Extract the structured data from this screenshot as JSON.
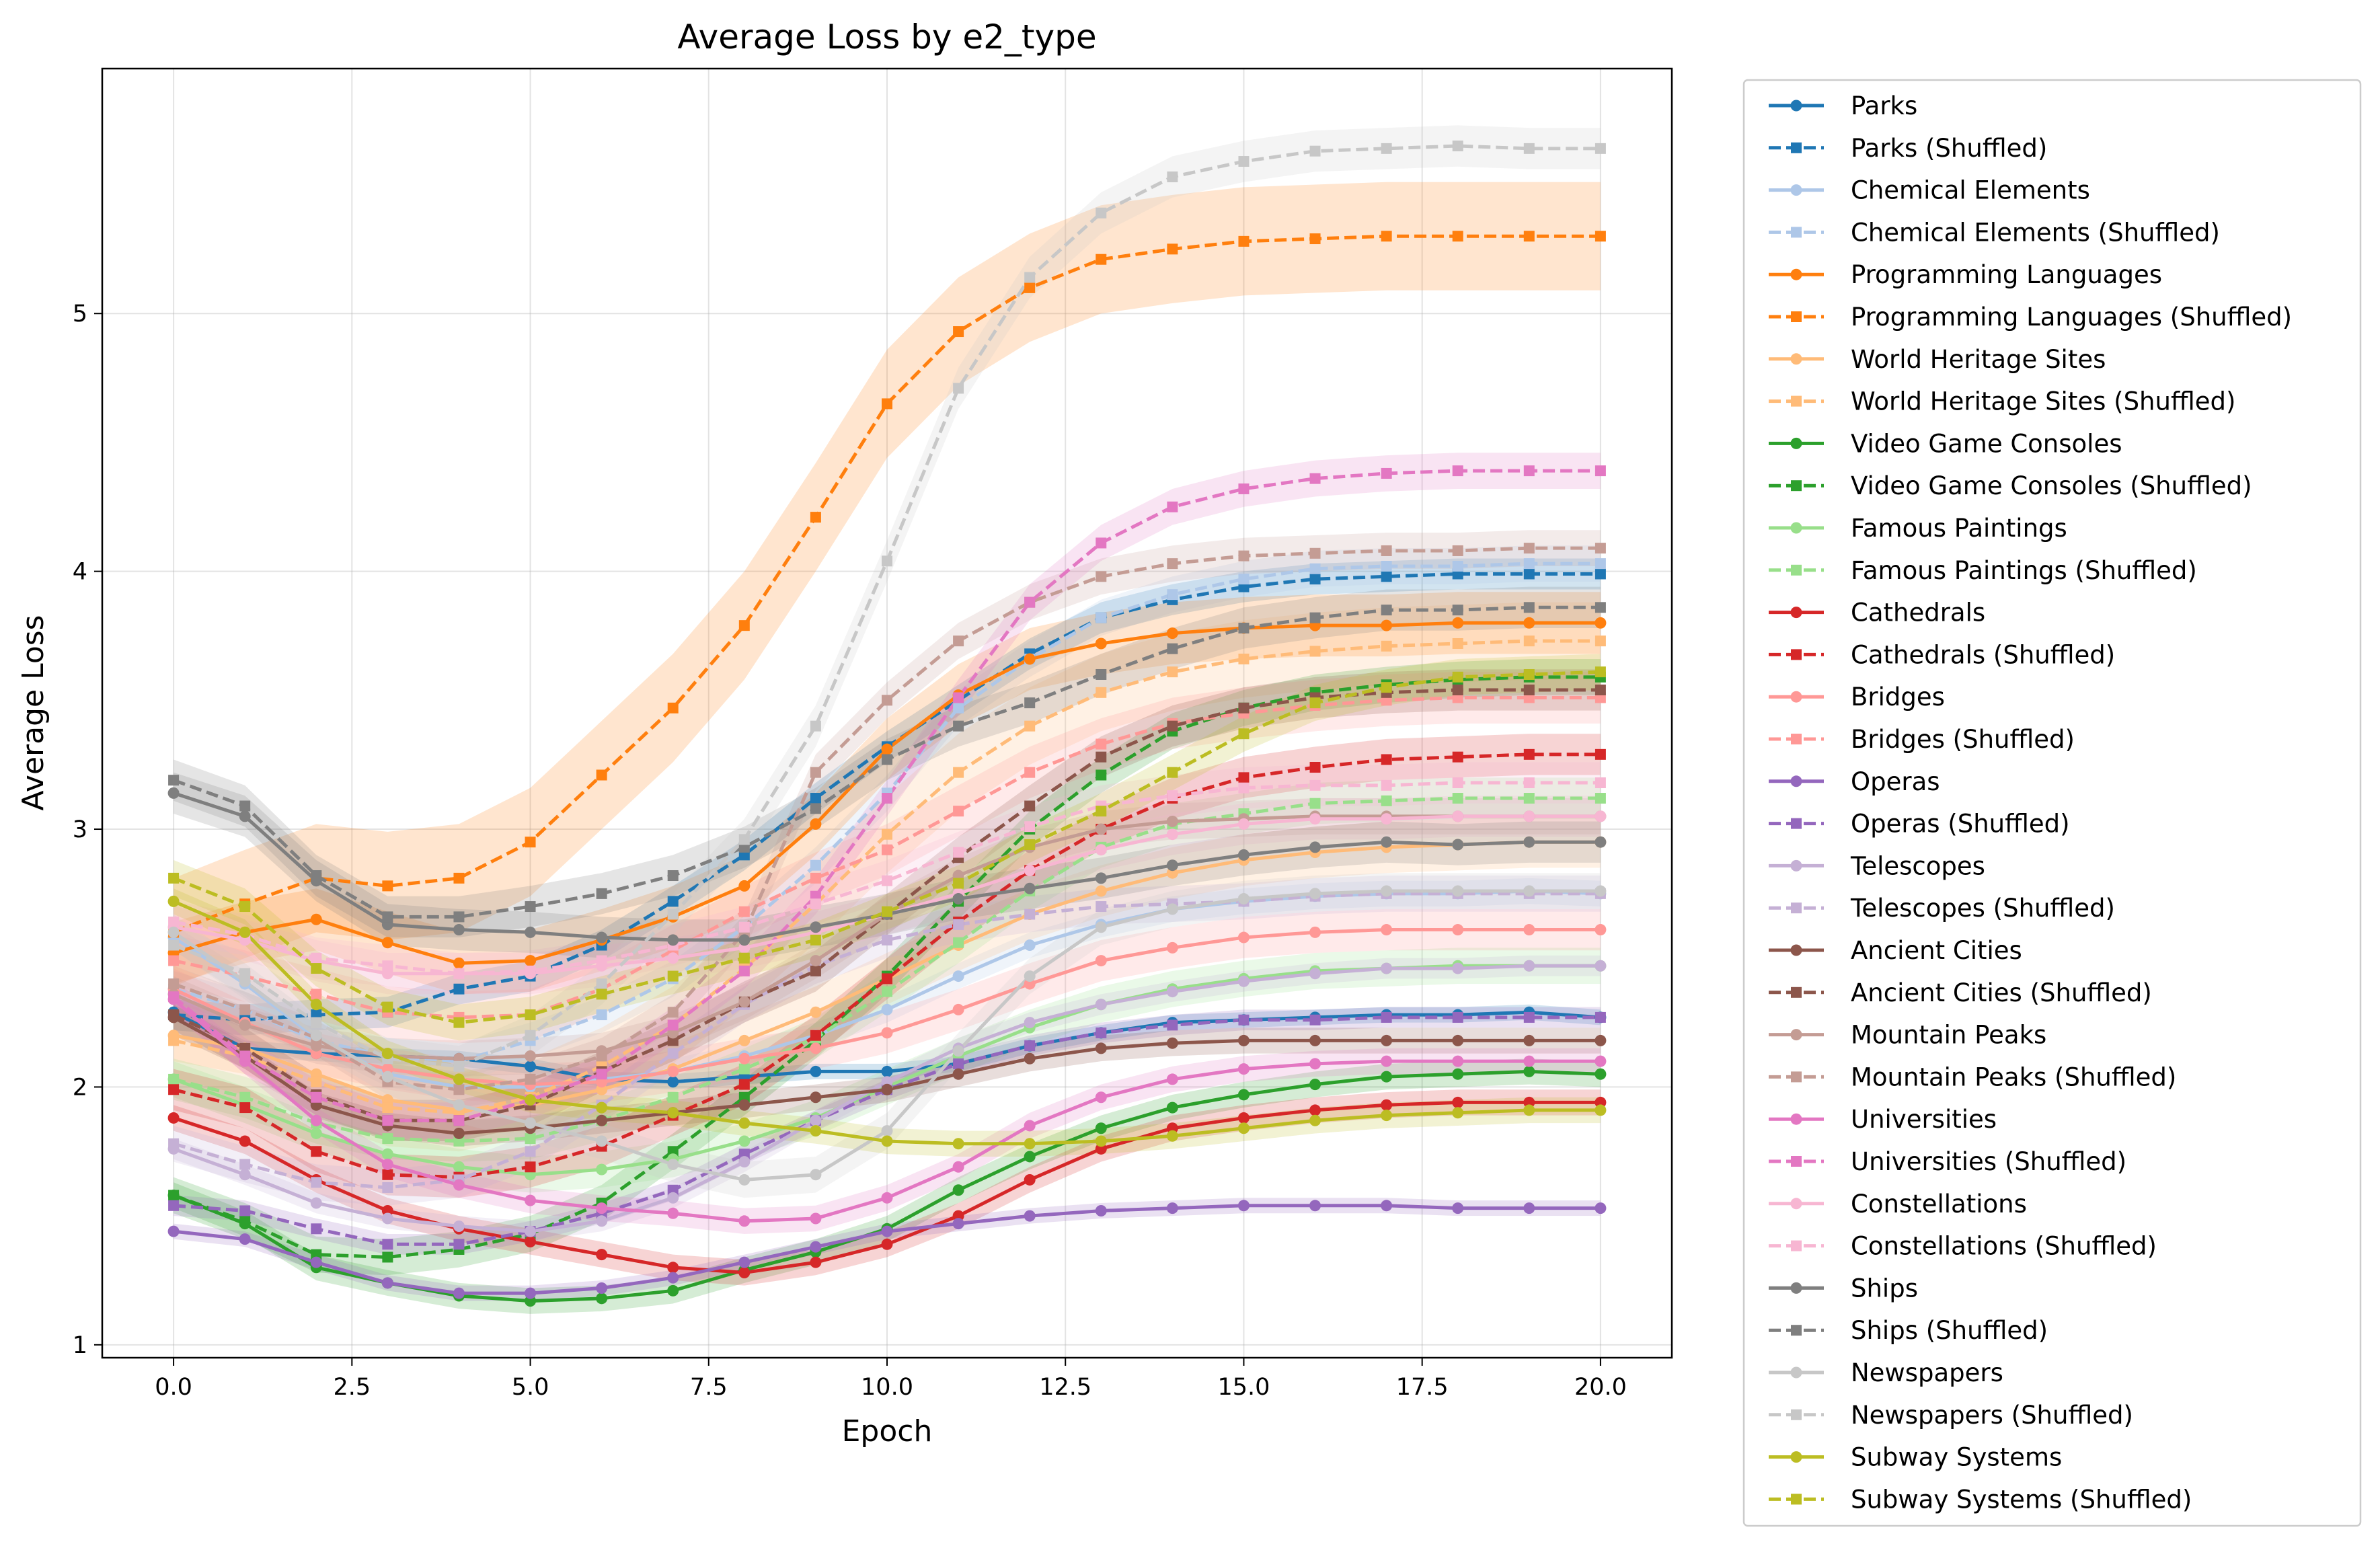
{
  "chart_data": {
    "type": "line",
    "title": "Average Loss by e2_type",
    "xlabel": "Epoch",
    "ylabel": "Average Loss",
    "xlim": [
      -1.0,
      21.0
    ],
    "ylim": [
      0.95,
      5.95
    ],
    "xticks": [
      0.0,
      2.5,
      5.0,
      7.5,
      10.0,
      12.5,
      15.0,
      17.5,
      20.0
    ],
    "xtick_labels": [
      "0.0",
      "2.5",
      "5.0",
      "7.5",
      "10.0",
      "12.5",
      "15.0",
      "17.5",
      "20.0"
    ],
    "yticks": [
      1,
      2,
      3,
      4,
      5
    ],
    "ytick_labels": [
      "1",
      "2",
      "3",
      "4",
      "5"
    ],
    "grid": true,
    "legend_position": "outside-right",
    "x": [
      0,
      1,
      2,
      3,
      4,
      5,
      6,
      7,
      8,
      9,
      10,
      11,
      12,
      13,
      14,
      15,
      16,
      17,
      18,
      19,
      20
    ],
    "series": [
      {
        "name": "Parks",
        "color": "#1f77b4",
        "style": "solid",
        "marker": "circle",
        "band": 0.03,
        "values": [
          2.29,
          2.15,
          2.13,
          2.12,
          2.11,
          2.08,
          2.03,
          2.02,
          2.04,
          2.06,
          2.06,
          2.09,
          2.16,
          2.21,
          2.25,
          2.26,
          2.27,
          2.28,
          2.28,
          2.29,
          2.27
        ]
      },
      {
        "name": "Parks (Shuffled)",
        "color": "#1f77b4",
        "style": "dashed",
        "marker": "square",
        "band": 0.06,
        "values": [
          2.28,
          2.26,
          2.28,
          2.29,
          2.38,
          2.43,
          2.55,
          2.72,
          2.9,
          3.12,
          3.32,
          3.5,
          3.68,
          3.82,
          3.89,
          3.94,
          3.97,
          3.98,
          3.99,
          3.99,
          3.99
        ]
      },
      {
        "name": "Chemical Elements",
        "color": "#aec7e8",
        "style": "solid",
        "marker": "circle",
        "band": 0.05,
        "values": [
          2.58,
          2.4,
          2.19,
          2.05,
          2.0,
          2.0,
          2.03,
          2.06,
          2.12,
          2.2,
          2.3,
          2.43,
          2.55,
          2.63,
          2.69,
          2.72,
          2.74,
          2.75,
          2.75,
          2.76,
          2.75
        ]
      },
      {
        "name": "Chemical Elements (Shuffled)",
        "color": "#aec7e8",
        "style": "dashed",
        "marker": "square",
        "band": 0.07,
        "values": [
          2.38,
          2.3,
          2.18,
          2.12,
          2.1,
          2.18,
          2.28,
          2.42,
          2.62,
          2.86,
          3.14,
          3.47,
          3.66,
          3.82,
          3.91,
          3.97,
          4.01,
          4.02,
          4.02,
          4.03,
          4.03
        ]
      },
      {
        "name": "Programming Languages",
        "color": "#ff7f0e",
        "style": "solid",
        "marker": "circle",
        "band": 0.12,
        "values": [
          2.52,
          2.6,
          2.65,
          2.56,
          2.48,
          2.49,
          2.57,
          2.66,
          2.78,
          3.02,
          3.31,
          3.52,
          3.66,
          3.72,
          3.76,
          3.78,
          3.79,
          3.79,
          3.8,
          3.8,
          3.8
        ]
      },
      {
        "name": "Programming Languages (Shuffled)",
        "color": "#ff7f0e",
        "style": "dashed",
        "marker": "square",
        "band": 0.21,
        "values": [
          2.6,
          2.71,
          2.81,
          2.78,
          2.81,
          2.95,
          3.21,
          3.47,
          3.79,
          4.21,
          4.65,
          4.93,
          5.1,
          5.21,
          5.25,
          5.28,
          5.29,
          5.3,
          5.3,
          5.3,
          5.3
        ]
      },
      {
        "name": "World Heritage Sites",
        "color": "#ffbb78",
        "style": "solid",
        "marker": "circle",
        "band": 0.1,
        "values": [
          2.2,
          2.15,
          2.05,
          1.95,
          1.91,
          1.93,
          1.99,
          2.07,
          2.18,
          2.29,
          2.42,
          2.55,
          2.67,
          2.76,
          2.83,
          2.88,
          2.91,
          2.93,
          2.94,
          2.95,
          2.95
        ]
      },
      {
        "name": "World Heritage Sites (Shuffled)",
        "color": "#ffbb78",
        "style": "dashed",
        "marker": "square",
        "band": 0.15,
        "values": [
          2.18,
          2.12,
          2.02,
          1.92,
          1.9,
          1.96,
          2.08,
          2.24,
          2.46,
          2.71,
          2.98,
          3.22,
          3.4,
          3.53,
          3.61,
          3.66,
          3.69,
          3.71,
          3.72,
          3.73,
          3.73
        ]
      },
      {
        "name": "Video Game Consoles",
        "color": "#2ca02c",
        "style": "solid",
        "marker": "circle",
        "band": 0.05,
        "values": [
          1.58,
          1.47,
          1.3,
          1.24,
          1.19,
          1.17,
          1.18,
          1.21,
          1.29,
          1.36,
          1.45,
          1.6,
          1.73,
          1.84,
          1.92,
          1.97,
          2.01,
          2.04,
          2.05,
          2.06,
          2.05
        ]
      },
      {
        "name": "Video Game Consoles (Shuffled)",
        "color": "#2ca02c",
        "style": "dashed",
        "marker": "square",
        "band": 0.07,
        "values": [
          1.58,
          1.48,
          1.35,
          1.34,
          1.37,
          1.43,
          1.55,
          1.75,
          1.96,
          2.18,
          2.43,
          2.72,
          3.0,
          3.21,
          3.38,
          3.47,
          3.53,
          3.56,
          3.58,
          3.59,
          3.59
        ]
      },
      {
        "name": "Famous Paintings",
        "color": "#98df8a",
        "style": "solid",
        "marker": "circle",
        "band": 0.07,
        "values": [
          2.03,
          1.93,
          1.82,
          1.74,
          1.69,
          1.66,
          1.68,
          1.72,
          1.79,
          1.88,
          2.0,
          2.12,
          2.23,
          2.32,
          2.38,
          2.42,
          2.45,
          2.46,
          2.47,
          2.47,
          2.47
        ]
      },
      {
        "name": "Famous Paintings (Shuffled)",
        "color": "#98df8a",
        "style": "dashed",
        "marker": "square",
        "band": 0.08,
        "values": [
          2.03,
          1.96,
          1.86,
          1.8,
          1.79,
          1.8,
          1.87,
          1.96,
          2.07,
          2.19,
          2.37,
          2.56,
          2.76,
          2.93,
          3.02,
          3.06,
          3.1,
          3.11,
          3.12,
          3.12,
          3.12
        ]
      },
      {
        "name": "Cathedrals",
        "color": "#d62728",
        "style": "solid",
        "marker": "circle",
        "band": 0.05,
        "values": [
          1.88,
          1.79,
          1.64,
          1.52,
          1.45,
          1.4,
          1.35,
          1.3,
          1.28,
          1.32,
          1.39,
          1.5,
          1.64,
          1.76,
          1.84,
          1.88,
          1.91,
          1.93,
          1.94,
          1.94,
          1.94
        ]
      },
      {
        "name": "Cathedrals (Shuffled)",
        "color": "#d62728",
        "style": "dashed",
        "marker": "square",
        "band": 0.08,
        "values": [
          1.99,
          1.92,
          1.75,
          1.66,
          1.65,
          1.69,
          1.77,
          1.89,
          2.01,
          2.2,
          2.42,
          2.64,
          2.84,
          3.0,
          3.12,
          3.2,
          3.24,
          3.27,
          3.28,
          3.29,
          3.29
        ]
      },
      {
        "name": "Bridges",
        "color": "#ff9896",
        "style": "solid",
        "marker": "circle",
        "band": 0.08,
        "values": [
          2.38,
          2.25,
          2.13,
          2.07,
          2.03,
          2.01,
          2.02,
          2.06,
          2.11,
          2.15,
          2.21,
          2.3,
          2.4,
          2.49,
          2.54,
          2.58,
          2.6,
          2.61,
          2.61,
          2.61,
          2.61
        ]
      },
      {
        "name": "Bridges (Shuffled)",
        "color": "#ff9896",
        "style": "dashed",
        "marker": "square",
        "band": 0.1,
        "values": [
          2.49,
          2.43,
          2.36,
          2.29,
          2.27,
          2.28,
          2.38,
          2.53,
          2.68,
          2.81,
          2.92,
          3.07,
          3.22,
          3.33,
          3.41,
          3.45,
          3.48,
          3.5,
          3.51,
          3.51,
          3.51
        ]
      },
      {
        "name": "Operas",
        "color": "#9467bd",
        "style": "solid",
        "marker": "circle",
        "band": 0.03,
        "values": [
          1.44,
          1.41,
          1.32,
          1.24,
          1.2,
          1.2,
          1.22,
          1.26,
          1.32,
          1.38,
          1.44,
          1.47,
          1.5,
          1.52,
          1.53,
          1.54,
          1.54,
          1.54,
          1.53,
          1.53,
          1.53
        ]
      },
      {
        "name": "Operas (Shuffled)",
        "color": "#9467bd",
        "style": "dashed",
        "marker": "square",
        "band": 0.04,
        "values": [
          1.54,
          1.52,
          1.45,
          1.39,
          1.39,
          1.44,
          1.51,
          1.6,
          1.74,
          1.87,
          1.99,
          2.09,
          2.16,
          2.21,
          2.24,
          2.26,
          2.26,
          2.27,
          2.27,
          2.27,
          2.27
        ]
      },
      {
        "name": "Telescopes",
        "color": "#c5b0d5",
        "style": "solid",
        "marker": "circle",
        "band": 0.04,
        "values": [
          1.76,
          1.66,
          1.55,
          1.49,
          1.46,
          1.44,
          1.48,
          1.57,
          1.71,
          1.87,
          2.02,
          2.15,
          2.25,
          2.32,
          2.37,
          2.41,
          2.44,
          2.46,
          2.46,
          2.47,
          2.47
        ]
      },
      {
        "name": "Telescopes (Shuffled)",
        "color": "#c5b0d5",
        "style": "dashed",
        "marker": "square",
        "band": 0.07,
        "values": [
          1.78,
          1.7,
          1.63,
          1.61,
          1.64,
          1.75,
          1.93,
          2.13,
          2.32,
          2.47,
          2.57,
          2.63,
          2.67,
          2.7,
          2.71,
          2.72,
          2.74,
          2.75,
          2.75,
          2.75,
          2.75
        ]
      },
      {
        "name": "Ancient Cities",
        "color": "#8c564b",
        "style": "solid",
        "marker": "circle",
        "band": 0.05,
        "values": [
          2.27,
          2.12,
          1.93,
          1.85,
          1.82,
          1.84,
          1.87,
          1.9,
          1.93,
          1.96,
          1.99,
          2.05,
          2.11,
          2.15,
          2.17,
          2.18,
          2.18,
          2.18,
          2.18,
          2.18,
          2.18
        ]
      },
      {
        "name": "Ancient Cities (Shuffled)",
        "color": "#8c564b",
        "style": "dashed",
        "marker": "square",
        "band": 0.08,
        "values": [
          2.28,
          2.15,
          1.97,
          1.87,
          1.87,
          1.93,
          2.06,
          2.18,
          2.33,
          2.45,
          2.67,
          2.89,
          3.09,
          3.28,
          3.4,
          3.47,
          3.51,
          3.53,
          3.54,
          3.54,
          3.54
        ]
      },
      {
        "name": "Mountain Peaks",
        "color": "#c49c94",
        "style": "solid",
        "marker": "circle",
        "band": 0.07,
        "values": [
          2.36,
          2.24,
          2.16,
          2.12,
          2.11,
          2.12,
          2.14,
          2.21,
          2.33,
          2.49,
          2.67,
          2.82,
          2.93,
          3.0,
          3.03,
          3.04,
          3.05,
          3.05,
          3.05,
          3.05,
          3.05
        ]
      },
      {
        "name": "Mountain Peaks (Shuffled)",
        "color": "#c49c94",
        "style": "dashed",
        "marker": "square",
        "band": 0.07,
        "values": [
          2.4,
          2.3,
          2.19,
          2.02,
          1.99,
          2.03,
          2.12,
          2.29,
          2.6,
          3.22,
          3.5,
          3.73,
          3.88,
          3.98,
          4.03,
          4.06,
          4.07,
          4.08,
          4.08,
          4.09,
          4.09
        ]
      },
      {
        "name": "Universities",
        "color": "#e377c2",
        "style": "solid",
        "marker": "circle",
        "band": 0.05,
        "values": [
          2.34,
          2.1,
          1.87,
          1.7,
          1.62,
          1.56,
          1.53,
          1.51,
          1.48,
          1.49,
          1.57,
          1.69,
          1.85,
          1.96,
          2.03,
          2.07,
          2.09,
          2.1,
          2.1,
          2.1,
          2.1
        ]
      },
      {
        "name": "Universities (Shuffled)",
        "color": "#e377c2",
        "style": "dashed",
        "marker": "square",
        "band": 0.07,
        "values": [
          2.35,
          2.12,
          1.96,
          1.87,
          1.87,
          1.95,
          2.05,
          2.24,
          2.45,
          2.74,
          3.12,
          3.51,
          3.88,
          4.11,
          4.25,
          4.32,
          4.36,
          4.38,
          4.39,
          4.39,
          4.39
        ]
      },
      {
        "name": "Constellations",
        "color": "#f7b6d2",
        "style": "solid",
        "marker": "circle",
        "band": 0.08,
        "values": [
          2.62,
          2.57,
          2.49,
          2.44,
          2.44,
          2.44,
          2.47,
          2.5,
          2.54,
          2.6,
          2.67,
          2.75,
          2.84,
          2.92,
          2.98,
          3.02,
          3.04,
          3.04,
          3.05,
          3.05,
          3.05
        ]
      },
      {
        "name": "Constellations (Shuffled)",
        "color": "#f7b6d2",
        "style": "dashed",
        "marker": "square",
        "band": 0.08,
        "values": [
          2.64,
          2.59,
          2.5,
          2.47,
          2.44,
          2.45,
          2.49,
          2.55,
          2.62,
          2.71,
          2.8,
          2.91,
          3.01,
          3.09,
          3.13,
          3.16,
          3.17,
          3.17,
          3.18,
          3.18,
          3.18
        ]
      },
      {
        "name": "Ships",
        "color": "#7f7f7f",
        "style": "solid",
        "marker": "circle",
        "band": 0.08,
        "values": [
          3.14,
          3.05,
          2.8,
          2.63,
          2.61,
          2.6,
          2.58,
          2.57,
          2.57,
          2.62,
          2.67,
          2.73,
          2.77,
          2.81,
          2.86,
          2.9,
          2.93,
          2.95,
          2.94,
          2.95,
          2.95
        ]
      },
      {
        "name": "Ships (Shuffled)",
        "color": "#7f7f7f",
        "style": "dashed",
        "marker": "square",
        "band": 0.08,
        "values": [
          3.19,
          3.09,
          2.82,
          2.66,
          2.66,
          2.7,
          2.75,
          2.82,
          2.93,
          3.08,
          3.27,
          3.4,
          3.49,
          3.6,
          3.7,
          3.78,
          3.82,
          3.85,
          3.85,
          3.86,
          3.86
        ]
      },
      {
        "name": "Newspapers",
        "color": "#c7c7c7",
        "style": "solid",
        "marker": "circle",
        "band": 0.07,
        "values": [
          2.6,
          2.41,
          2.2,
          2.04,
          1.93,
          1.86,
          1.79,
          1.7,
          1.64,
          1.66,
          1.83,
          2.14,
          2.43,
          2.62,
          2.69,
          2.73,
          2.75,
          2.76,
          2.76,
          2.76,
          2.76
        ]
      },
      {
        "name": "Newspapers (Shuffled)",
        "color": "#c7c7c7",
        "style": "dashed",
        "marker": "square",
        "band": 0.08,
        "values": [
          2.55,
          2.44,
          2.25,
          2.11,
          2.08,
          2.2,
          2.4,
          2.67,
          2.96,
          3.4,
          4.04,
          4.71,
          5.14,
          5.39,
          5.53,
          5.59,
          5.63,
          5.64,
          5.65,
          5.64,
          5.64
        ]
      },
      {
        "name": "Subway Systems",
        "color": "#bcbd22",
        "style": "solid",
        "marker": "circle",
        "band": 0.05,
        "values": [
          2.72,
          2.6,
          2.32,
          2.13,
          2.03,
          1.95,
          1.92,
          1.9,
          1.86,
          1.83,
          1.79,
          1.78,
          1.78,
          1.79,
          1.81,
          1.84,
          1.87,
          1.89,
          1.9,
          1.91,
          1.91
        ]
      },
      {
        "name": "Subway Systems (Shuffled)",
        "color": "#bcbd22",
        "style": "dashed",
        "marker": "square",
        "band": 0.07,
        "values": [
          2.81,
          2.7,
          2.46,
          2.31,
          2.25,
          2.28,
          2.36,
          2.43,
          2.5,
          2.57,
          2.68,
          2.79,
          2.94,
          3.07,
          3.22,
          3.37,
          3.49,
          3.55,
          3.59,
          3.6,
          3.61
        ]
      }
    ]
  }
}
